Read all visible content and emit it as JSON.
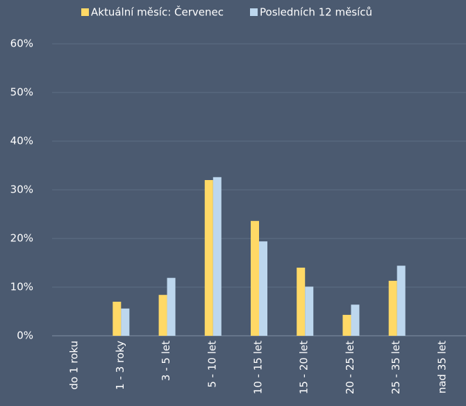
{
  "chart_data": {
    "type": "bar",
    "categories": [
      "do 1 roku",
      "1 - 3 roky",
      "3 - 5 let",
      "5 - 10 let",
      "10 - 15 let",
      "15 - 20 let",
      "20 - 25 let",
      "25 - 35 let",
      "nad 35 let"
    ],
    "series": [
      {
        "name": "Aktuální měsíc: Červenec",
        "color": "#ffd966",
        "values": [
          0,
          7.0,
          8.4,
          32.0,
          23.6,
          14.0,
          4.3,
          11.3,
          0
        ]
      },
      {
        "name": "Posledních 12 měsíců",
        "color": "#bdd7ee",
        "values": [
          0,
          5.6,
          11.9,
          32.6,
          19.4,
          10.1,
          6.4,
          14.4,
          0
        ]
      }
    ],
    "ylim": [
      0,
      60
    ],
    "yticks": [
      {
        "value": 0,
        "label": "0%"
      },
      {
        "value": 10,
        "label": "10%"
      },
      {
        "value": 20,
        "label": "20%"
      },
      {
        "value": 30,
        "label": "30%"
      },
      {
        "value": 40,
        "label": "40%"
      },
      {
        "value": 50,
        "label": "50%"
      },
      {
        "value": 60,
        "label": "60%"
      }
    ],
    "grid": true,
    "legend": "top"
  }
}
